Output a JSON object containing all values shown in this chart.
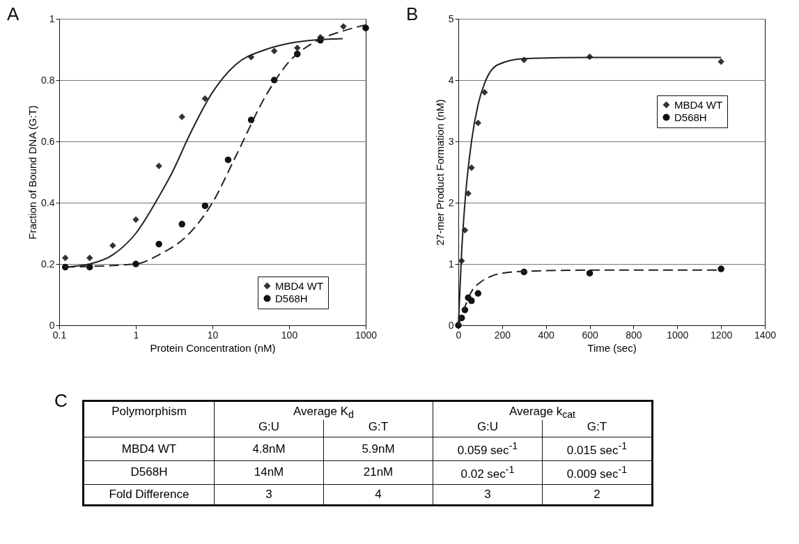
{
  "chart_data": [
    {
      "type": "scatter",
      "title": "A",
      "xlabel": "Protein Concentration (nM)",
      "ylabel": "Fraction of Bound DNA (G:T)",
      "log": "x",
      "xlim": [
        0.1,
        1000
      ],
      "xticks": [
        0.1,
        1,
        10,
        100,
        1000
      ],
      "ylim": [
        0,
        1
      ],
      "yticks": [
        0,
        0.2,
        0.4,
        0.6,
        0.8,
        1
      ],
      "grid": "y",
      "legend": "bottom right",
      "series": [
        {
          "name": "MBD4 WT",
          "type": "scatter",
          "marker": "diamond",
          "color": "#333333",
          "x": [
            0.12,
            0.25,
            0.5,
            1,
            2,
            4,
            8,
            32,
            64,
            128,
            256,
            512
          ],
          "values": [
            0.22,
            0.22,
            0.26,
            0.345,
            0.52,
            0.68,
            0.74,
            0.875,
            0.895,
            0.905,
            0.94,
            0.975
          ]
        },
        {
          "name": "D568H",
          "type": "scatter",
          "marker": "circle",
          "color": "#111111",
          "x": [
            0.12,
            0.25,
            1,
            2,
            4,
            8,
            16,
            32,
            64,
            128,
            256,
            1000
          ],
          "values": [
            0.19,
            0.19,
            0.2,
            0.265,
            0.33,
            0.39,
            0.54,
            0.67,
            0.8,
            0.885,
            0.93,
            0.97
          ]
        },
        {
          "type": "line",
          "line_style": "solid",
          "color": "#222222",
          "x": [
            0.12,
            0.25,
            0.5,
            1,
            2,
            3,
            5,
            10,
            20,
            50,
            100,
            200,
            500
          ],
          "values": [
            0.19,
            0.2,
            0.23,
            0.3,
            0.42,
            0.5,
            0.62,
            0.76,
            0.85,
            0.9,
            0.92,
            0.93,
            0.935
          ]
        },
        {
          "type": "line",
          "line_style": "dashed",
          "color": "#222222",
          "x": [
            0.12,
            1,
            2,
            5,
            10,
            20,
            50,
            100,
            200,
            500,
            1000
          ],
          "values": [
            0.19,
            0.2,
            0.23,
            0.3,
            0.4,
            0.55,
            0.75,
            0.86,
            0.92,
            0.96,
            0.98
          ]
        }
      ]
    },
    {
      "type": "scatter",
      "title": "B",
      "xlabel": "Time (sec)",
      "ylabel": "27-mer Product Formation (nM)",
      "xlim": [
        0,
        1400
      ],
      "xticks": [
        0,
        200,
        400,
        600,
        800,
        1000,
        1200,
        1400
      ],
      "ylim": [
        0,
        5
      ],
      "yticks": [
        0,
        1,
        2,
        3,
        4,
        5
      ],
      "grid": "y",
      "legend": "top right",
      "series": [
        {
          "name": "MBD4 WT",
          "type": "scatter",
          "marker": "diamond",
          "color": "#333333",
          "x": [
            15,
            30,
            45,
            60,
            90,
            120,
            300,
            600,
            1200
          ],
          "values": [
            1.05,
            1.55,
            2.15,
            2.57,
            3.3,
            3.8,
            4.33,
            4.38,
            4.3
          ]
        },
        {
          "name": "D568H",
          "type": "scatter",
          "marker": "circle",
          "color": "#111111",
          "x": [
            0,
            15,
            30,
            45,
            60,
            90,
            300,
            600,
            1200
          ],
          "values": [
            0,
            0.12,
            0.25,
            0.45,
            0.4,
            0.52,
            0.87,
            0.85,
            0.92
          ]
        },
        {
          "type": "line",
          "line_style": "solid",
          "color": "#222222",
          "x": [
            0,
            15,
            30,
            60,
            90,
            120,
            180,
            300,
            600,
            1200
          ],
          "values": [
            0,
            1.2,
            2.0,
            3.0,
            3.6,
            3.95,
            4.25,
            4.35,
            4.37,
            4.37
          ]
        },
        {
          "type": "line",
          "line_style": "dashed",
          "color": "#222222",
          "x": [
            0,
            30,
            60,
            100,
            150,
            200,
            300,
            600,
            1200
          ],
          "values": [
            0,
            0.3,
            0.55,
            0.7,
            0.8,
            0.85,
            0.88,
            0.9,
            0.9
          ]
        }
      ]
    },
    {
      "type": "other",
      "title": "C",
      "annotations": [
        "Polymorphism",
        "Average K$_{d}$",
        "Average k$_{cat}$"
      ],
      "categories": [
        "G:U",
        "G:T",
        "G:U",
        "G:T"
      ],
      "y_categories": [
        "MBD4 WT",
        "D568H",
        "Fold Difference"
      ],
      "cell_labels": [
        [
          "4.8nM",
          "5.9nM",
          "0.059 sec$^{-1}$",
          "0.015 sec$^{-1}$"
        ],
        [
          "14nM",
          "21nM",
          "0.02 sec$^{-1}$",
          "0.009 sec$^{-1}$"
        ],
        [
          "3",
          "4",
          "3",
          "2"
        ]
      ]
    }
  ]
}
